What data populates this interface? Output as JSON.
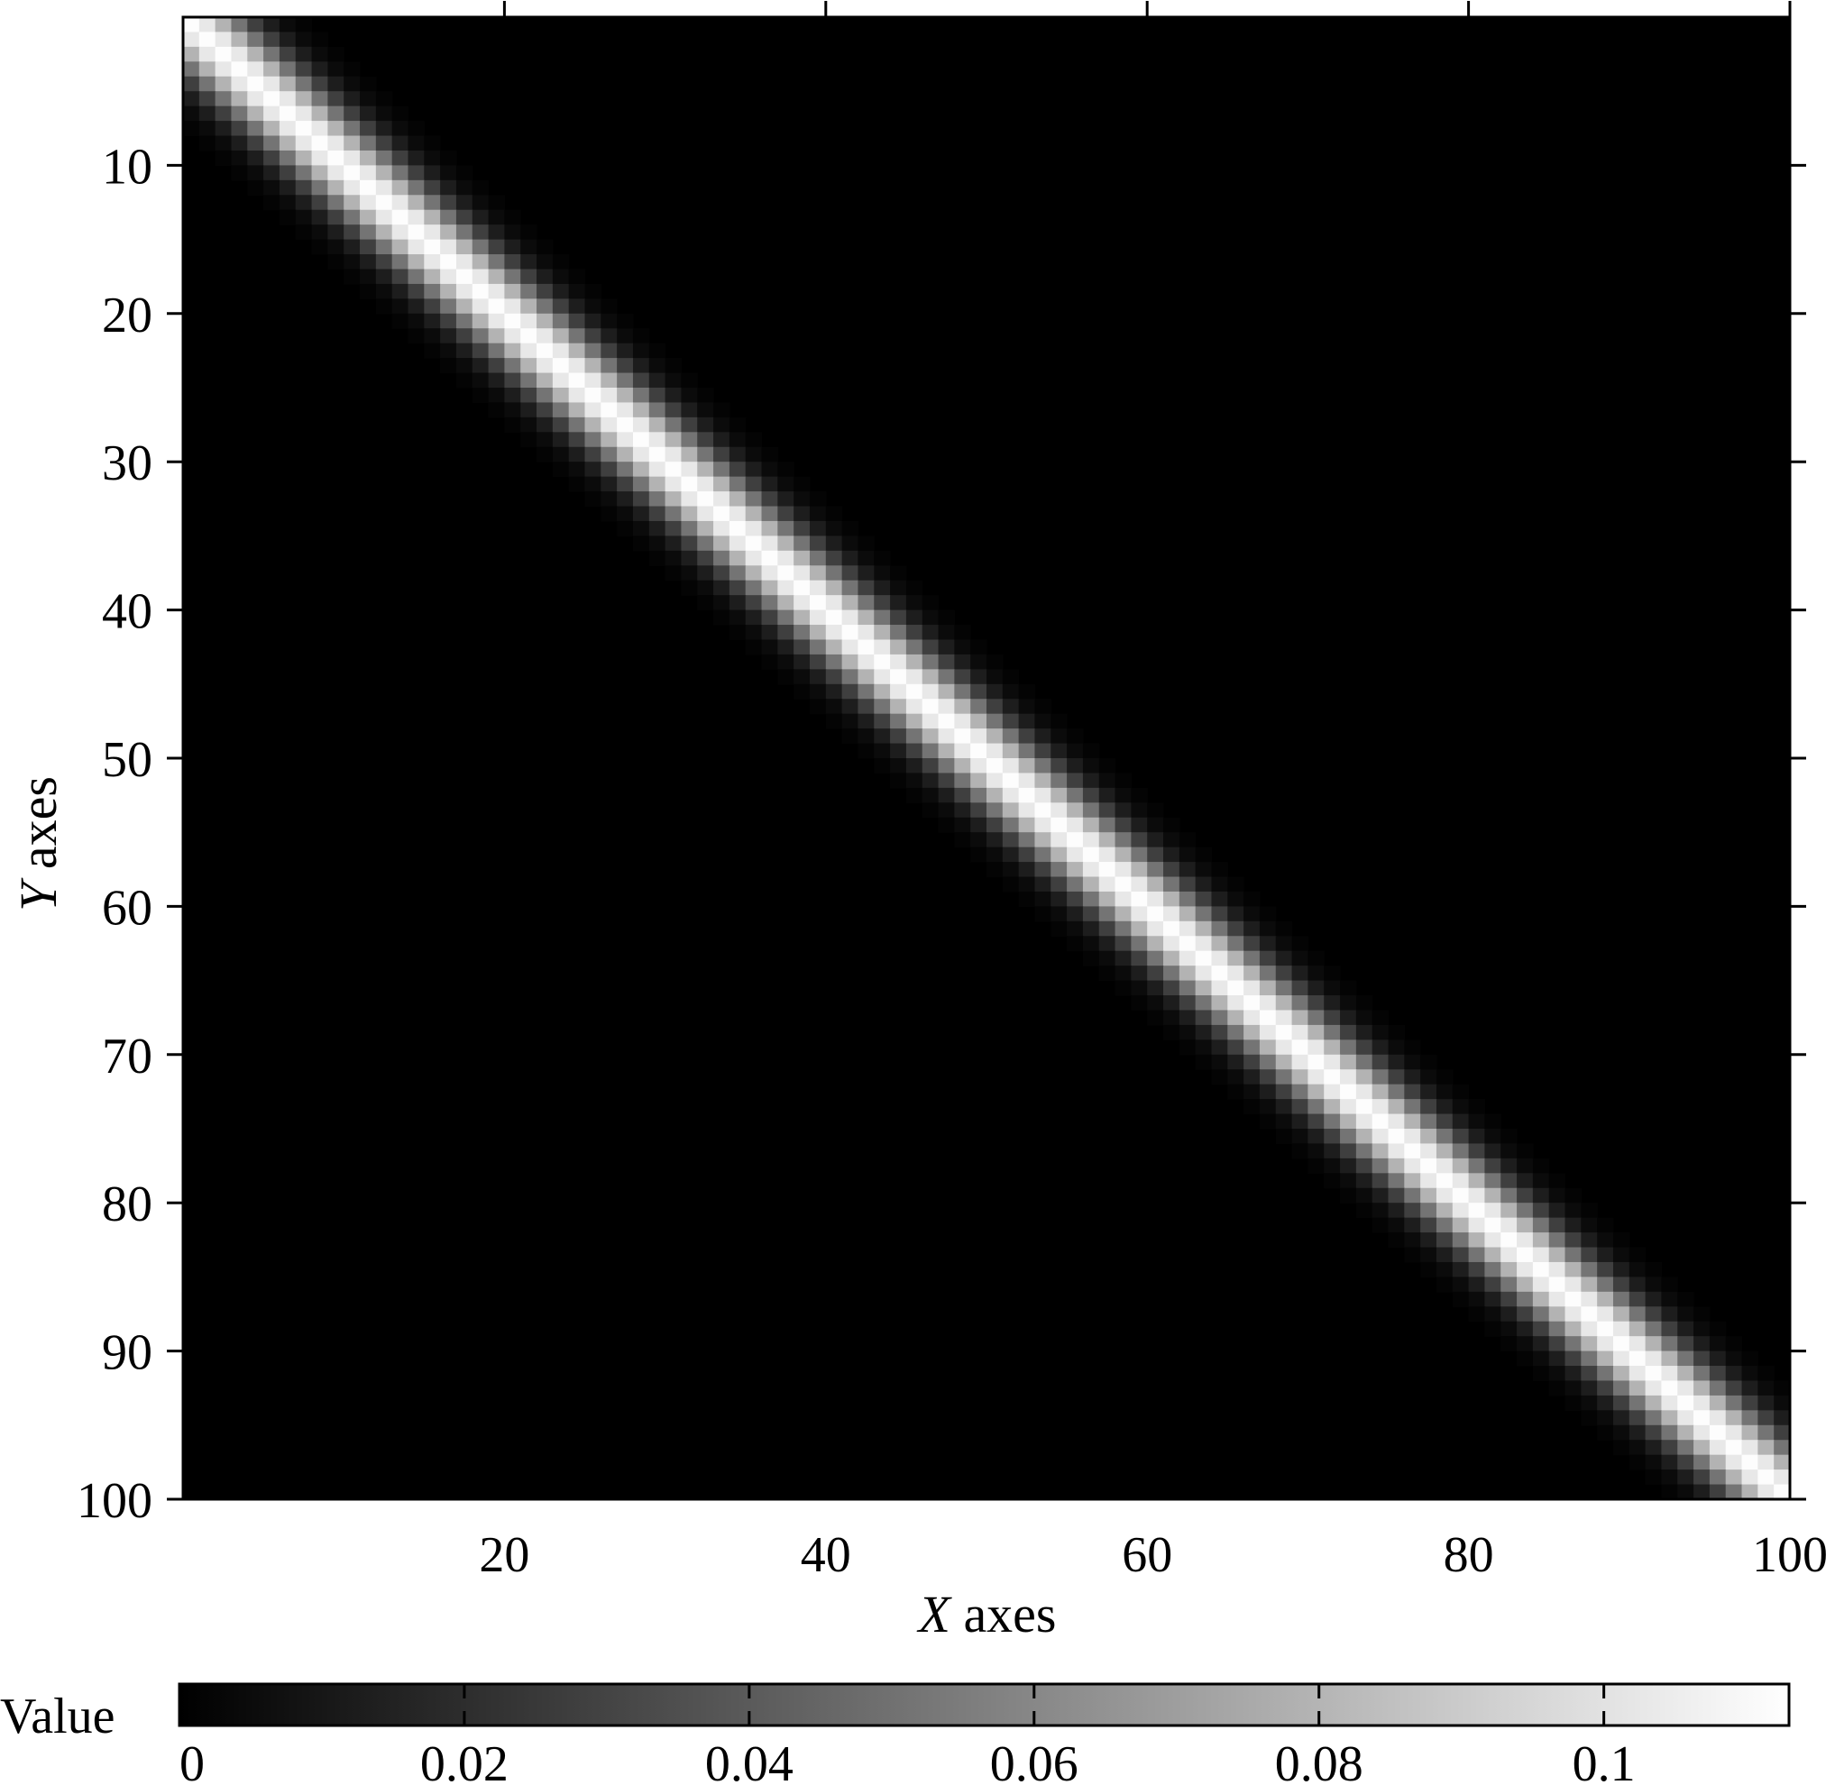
{
  "chart_data": {
    "type": "heatmap",
    "title": "",
    "xlabel": {
      "var": "X",
      "rest": " axes"
    },
    "ylabel": {
      "var": "Y",
      "rest": " axes"
    },
    "x_range": [
      0,
      100
    ],
    "y_range": [
      0,
      100
    ],
    "y_inverted": true,
    "x_ticks": [
      20,
      40,
      60,
      80,
      100
    ],
    "y_ticks": [
      10,
      20,
      30,
      40,
      50,
      60,
      70,
      80,
      90,
      100
    ],
    "grid": false,
    "colormap": "gray",
    "cells": {
      "rows": 100,
      "cols": 100,
      "pattern": "gaussian band along the diagonal x = y"
    },
    "band": {
      "peak_value": 0.112,
      "sigma": 2.4
    },
    "colorbar": {
      "label": "Value",
      "range": [
        0,
        0.113
      ],
      "ticks": [
        "0",
        "0.02",
        "0.04",
        "0.06",
        "0.08",
        "0.1"
      ],
      "tick_values": [
        0,
        0.02,
        0.04,
        0.06,
        0.08,
        0.1
      ],
      "placement": "bottom"
    }
  }
}
